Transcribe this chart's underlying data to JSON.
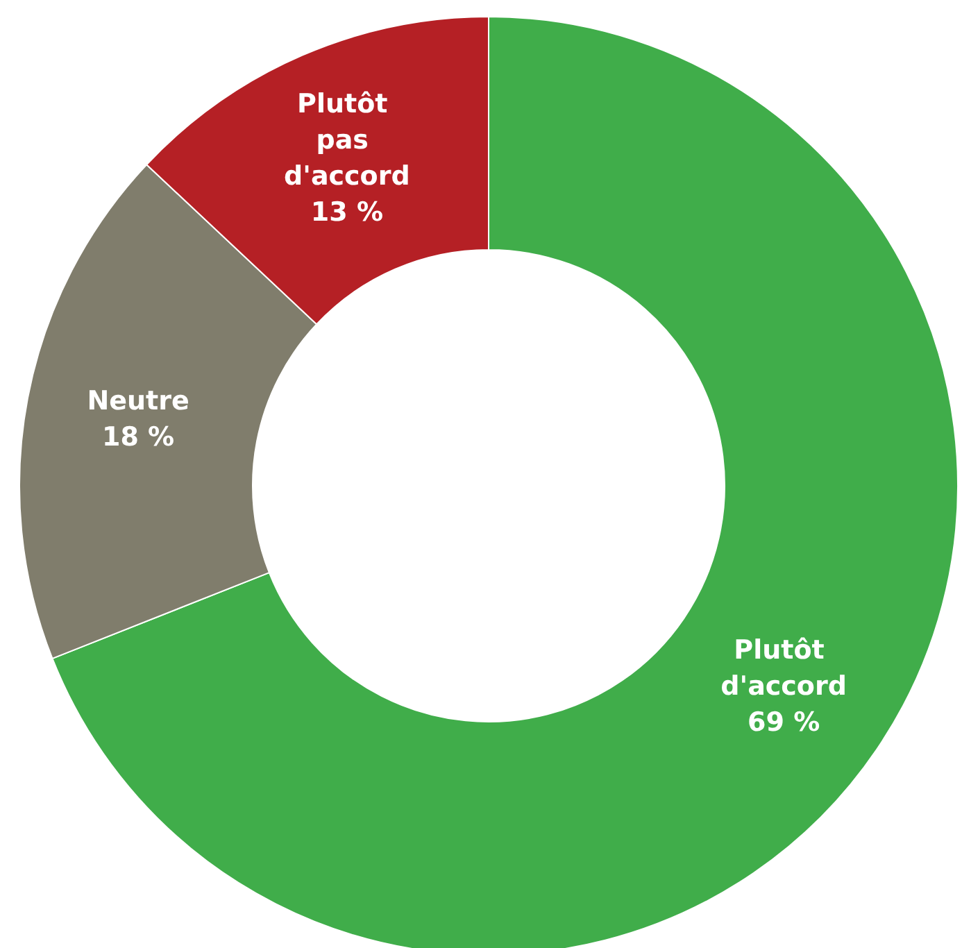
{
  "chart_data": {
    "type": "donut",
    "categories": [
      "Plutôt d'accord",
      "Neutre",
      "Plutôt pas d'accord"
    ],
    "values": [
      69,
      18,
      13
    ],
    "colors": [
      "#40ad4a",
      "#807d6c",
      "#b52025"
    ],
    "value_labels": [
      "69 %",
      "18 %",
      "13 %"
    ]
  }
}
